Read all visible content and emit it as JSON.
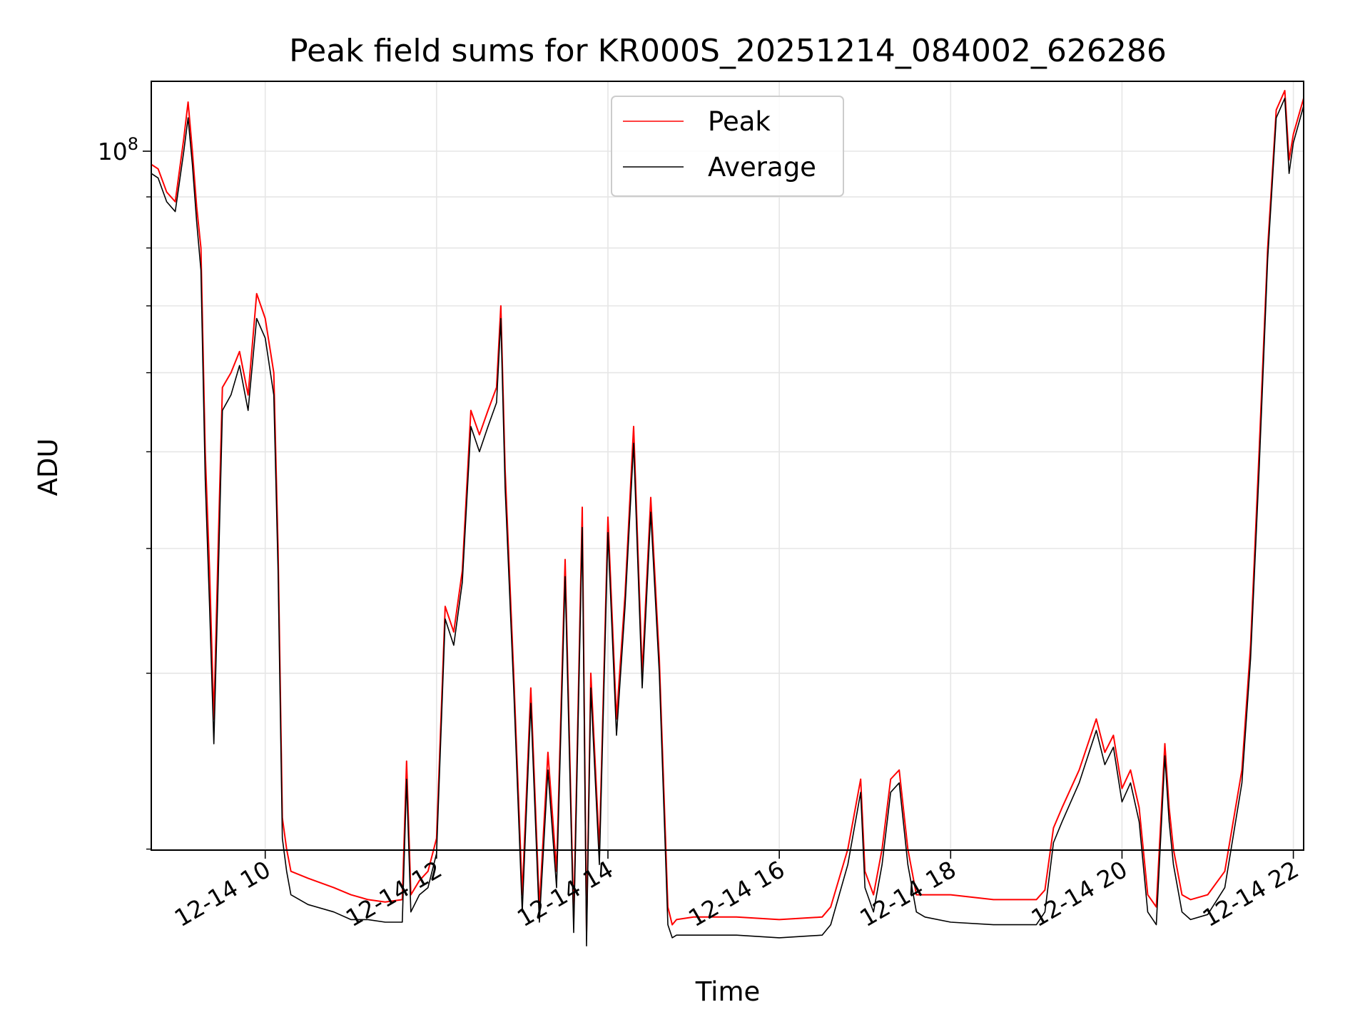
{
  "chart_data": {
    "type": "line",
    "title": "Peak field sums for KR000S_20251214_084002_626286",
    "xlabel": "Time",
    "ylabel": "ADU",
    "xlim": [
      8.67,
      22.12
    ],
    "ylim_log10": [
      7.3,
      8.07
    ],
    "y_tick": {
      "value": 100000000,
      "label_base": "10",
      "label_exp": "8"
    },
    "y_minor_ticks": [
      20000000,
      30000000,
      40000000,
      50000000,
      60000000,
      70000000,
      80000000,
      90000000
    ],
    "x_ticks": [
      {
        "value": 10,
        "label": "12-14 10"
      },
      {
        "value": 12,
        "label": "12-14 12"
      },
      {
        "value": 14,
        "label": "12-14 14"
      },
      {
        "value": 16,
        "label": "12-14 16"
      },
      {
        "value": 18,
        "label": "12-14 18"
      },
      {
        "value": 20,
        "label": "12-14 20"
      },
      {
        "value": 22,
        "label": "12-14 22"
      }
    ],
    "grid": true,
    "legend_position": "top-center",
    "series": [
      {
        "name": "Peak",
        "color": "#ff0000",
        "x": [
          8.67,
          8.75,
          8.85,
          8.95,
          9.05,
          9.1,
          9.15,
          9.2,
          9.25,
          9.3,
          9.35,
          9.4,
          9.45,
          9.5,
          9.6,
          9.7,
          9.8,
          9.9,
          10.0,
          10.1,
          10.15,
          10.2,
          10.25,
          10.3,
          10.5,
          10.8,
          11.0,
          11.2,
          11.4,
          11.6,
          11.65,
          11.7,
          11.8,
          11.9,
          12.0,
          12.1,
          12.2,
          12.3,
          12.4,
          12.5,
          12.6,
          12.7,
          12.75,
          12.8,
          12.9,
          13.0,
          13.1,
          13.2,
          13.3,
          13.4,
          13.5,
          13.6,
          13.7,
          13.75,
          13.8,
          13.9,
          14.0,
          14.1,
          14.2,
          14.3,
          14.4,
          14.5,
          14.6,
          14.7,
          14.75,
          14.8,
          15.0,
          15.5,
          16.0,
          16.5,
          16.6,
          16.8,
          16.95,
          17.0,
          17.1,
          17.2,
          17.3,
          17.4,
          17.5,
          17.6,
          17.7,
          18.0,
          18.5,
          19.0,
          19.1,
          19.2,
          19.3,
          19.5,
          19.7,
          19.8,
          19.9,
          20.0,
          20.1,
          20.2,
          20.3,
          20.4,
          20.5,
          20.55,
          20.6,
          20.7,
          20.8,
          21.0,
          21.2,
          21.4,
          21.5,
          21.6,
          21.7,
          21.8,
          21.9,
          21.95,
          22.0,
          22.12
        ],
        "values": [
          97000000,
          96000000,
          91000000,
          89000000,
          103000000,
          112000000,
          100000000,
          88000000,
          80000000,
          50000000,
          38000000,
          27000000,
          40000000,
          58000000,
          60000000,
          63000000,
          57000000,
          72000000,
          68000000,
          60000000,
          40000000,
          21500000,
          20000000,
          19000000,
          18700000,
          18300000,
          18000000,
          17800000,
          17700000,
          17800000,
          24500000,
          18000000,
          18600000,
          19000000,
          20500000,
          35000000,
          33000000,
          38000000,
          55000000,
          52000000,
          55000000,
          58000000,
          70000000,
          48000000,
          30000000,
          18000000,
          29000000,
          17500000,
          25000000,
          19000000,
          39000000,
          17000000,
          44000000,
          16500000,
          30000000,
          20000000,
          43000000,
          27000000,
          36000000,
          53000000,
          30000000,
          45000000,
          31000000,
          17500000,
          16800000,
          17000000,
          17100000,
          17100000,
          17000000,
          17100000,
          17500000,
          20000000,
          23500000,
          19000000,
          18000000,
          20000000,
          23500000,
          24000000,
          20000000,
          18000000,
          18000000,
          18000000,
          17800000,
          17800000,
          18200000,
          21000000,
          22000000,
          24000000,
          27000000,
          25000000,
          26000000,
          23000000,
          24000000,
          22000000,
          18000000,
          17500000,
          25500000,
          22000000,
          20000000,
          18000000,
          17800000,
          18000000,
          19000000,
          24000000,
          32000000,
          50000000,
          80000000,
          110000000,
          115000000,
          98000000,
          104000000,
          113000000
        ]
      },
      {
        "name": "Average",
        "color": "#000000",
        "x": [
          8.67,
          8.75,
          8.85,
          8.95,
          9.05,
          9.1,
          9.15,
          9.2,
          9.25,
          9.3,
          9.35,
          9.4,
          9.45,
          9.5,
          9.6,
          9.7,
          9.8,
          9.9,
          10.0,
          10.1,
          10.15,
          10.2,
          10.25,
          10.3,
          10.5,
          10.8,
          11.0,
          11.2,
          11.4,
          11.6,
          11.65,
          11.7,
          11.8,
          11.9,
          12.0,
          12.1,
          12.2,
          12.3,
          12.4,
          12.5,
          12.6,
          12.7,
          12.75,
          12.8,
          12.9,
          13.0,
          13.1,
          13.2,
          13.3,
          13.4,
          13.5,
          13.6,
          13.7,
          13.75,
          13.8,
          13.9,
          14.0,
          14.1,
          14.2,
          14.3,
          14.4,
          14.5,
          14.6,
          14.7,
          14.75,
          14.8,
          15.0,
          15.5,
          16.0,
          16.5,
          16.6,
          16.8,
          16.95,
          17.0,
          17.1,
          17.2,
          17.3,
          17.4,
          17.5,
          17.6,
          17.7,
          18.0,
          18.5,
          19.0,
          19.1,
          19.2,
          19.3,
          19.5,
          19.7,
          19.8,
          19.9,
          20.0,
          20.1,
          20.2,
          20.3,
          20.4,
          20.5,
          20.55,
          20.6,
          20.7,
          20.8,
          21.0,
          21.2,
          21.4,
          21.5,
          21.6,
          21.7,
          21.8,
          21.9,
          21.95,
          22.0,
          22.12
        ],
        "values": [
          95000000,
          94000000,
          89000000,
          87000000,
          100000000,
          108000000,
          97000000,
          85000000,
          76000000,
          47000000,
          35000000,
          25500000,
          37000000,
          55000000,
          57000000,
          61000000,
          55000000,
          68000000,
          65000000,
          57000000,
          38000000,
          20500000,
          19000000,
          18000000,
          17600000,
          17300000,
          17000000,
          17000000,
          16900000,
          16900000,
          23500000,
          17300000,
          18000000,
          18300000,
          19800000,
          34000000,
          32000000,
          37000000,
          53000000,
          50000000,
          53000000,
          56000000,
          68000000,
          46000000,
          29000000,
          17300000,
          28000000,
          16900000,
          24000000,
          18300000,
          37500000,
          16500000,
          42000000,
          16000000,
          29000000,
          19300000,
          41500000,
          26000000,
          35000000,
          51000000,
          29000000,
          43500000,
          30000000,
          16800000,
          16300000,
          16400000,
          16400000,
          16400000,
          16300000,
          16400000,
          16800000,
          19300000,
          22800000,
          18300000,
          17300000,
          19300000,
          22800000,
          23300000,
          19300000,
          17300000,
          17100000,
          16900000,
          16800000,
          16800000,
          17300000,
          20300000,
          21300000,
          23300000,
          26300000,
          24300000,
          25300000,
          22300000,
          23300000,
          21300000,
          17300000,
          16800000,
          24800000,
          21300000,
          19300000,
          17300000,
          17000000,
          17200000,
          18300000,
          23300000,
          31000000,
          48000000,
          78000000,
          108000000,
          113000000,
          95000000,
          102000000,
          111000000
        ]
      }
    ]
  }
}
